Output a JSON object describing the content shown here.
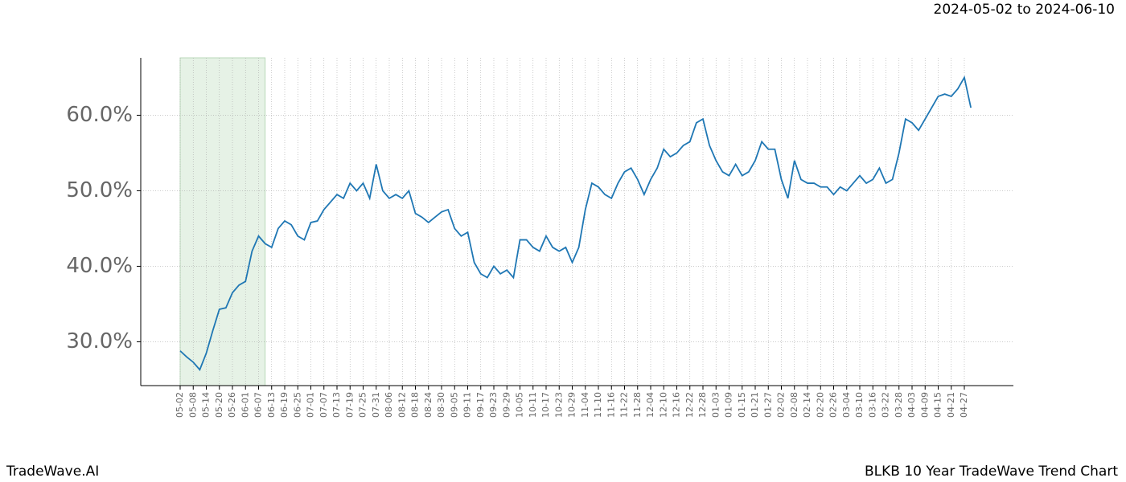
{
  "header": "2024-05-02 to 2024-06-10",
  "footer_left": "TradeWave.AI",
  "footer_right": "BLKB 10 Year TradeWave Trend Chart",
  "chart_data": {
    "type": "line",
    "categories": [
      "05-02",
      null,
      "05-08",
      null,
      "05-14",
      null,
      "05-20",
      null,
      "05-26",
      null,
      "06-01",
      null,
      "06-07",
      null,
      "06-13",
      null,
      "06-19",
      null,
      "06-25",
      null,
      "07-01",
      null,
      "07-07",
      null,
      "07-13",
      null,
      "07-19",
      null,
      "07-25",
      null,
      "07-31",
      null,
      "08-06",
      null,
      "08-12",
      null,
      "08-18",
      null,
      "08-24",
      null,
      "08-30",
      null,
      "09-05",
      null,
      "09-11",
      null,
      "09-17",
      null,
      "09-23",
      null,
      "09-29",
      null,
      "10-05",
      null,
      "10-11",
      null,
      "10-17",
      null,
      "10-23",
      null,
      "10-29",
      null,
      "11-04",
      null,
      "11-10",
      null,
      "11-16",
      null,
      "11-22",
      null,
      "11-28",
      null,
      "12-04",
      null,
      "12-10",
      null,
      "12-16",
      null,
      "12-22",
      null,
      "12-28",
      null,
      "01-03",
      null,
      "01-09",
      null,
      "01-15",
      null,
      "01-21",
      null,
      "01-27",
      null,
      "02-02",
      null,
      "02-08",
      null,
      "02-14",
      null,
      "02-20",
      null,
      "02-26",
      null,
      "03-04",
      null,
      "03-10",
      null,
      "03-16",
      null,
      "03-22",
      null,
      "03-28",
      null,
      "04-03",
      null,
      "04-09",
      null,
      "04-15",
      null,
      "04-21",
      null,
      "04-27",
      null
    ],
    "series": [
      {
        "color": "#1f77b4",
        "values": [
          28.8,
          28.0,
          27.3,
          26.3,
          28.5,
          31.5,
          34.3,
          34.5,
          36.5,
          37.5,
          38.0,
          42.0,
          44.0,
          43.0,
          42.5,
          45.0,
          46.0,
          45.5,
          44.0,
          43.5,
          45.8,
          46.0,
          47.5,
          48.5,
          49.5,
          49.0,
          51.0,
          50.0,
          51.0,
          49.0,
          53.5,
          50.0,
          49.0,
          49.5,
          49.0,
          50.0,
          47.0,
          46.5,
          45.8,
          46.5,
          47.2,
          47.5,
          45.0,
          44.0,
          44.5,
          40.5,
          39.0,
          38.5,
          40.0,
          39.0,
          39.5,
          38.5,
          43.5,
          43.5,
          42.5,
          42.0,
          44.0,
          42.5,
          42.0,
          42.5,
          40.5,
          42.5,
          47.5,
          51.0,
          50.5,
          49.5,
          49.0,
          51.0,
          52.5,
          53.0,
          51.5,
          49.5,
          51.5,
          53.0,
          55.5,
          54.5,
          55.0,
          56.0,
          56.5,
          59.0,
          59.5,
          56.0,
          54.0,
          52.5,
          52.0,
          53.5,
          52.0,
          52.5,
          54.0,
          56.5,
          55.5,
          55.5,
          51.5,
          49.0,
          54.0,
          51.5,
          51.0,
          51.0,
          50.5,
          50.5,
          49.5,
          50.5,
          50.0,
          51.0,
          52.0,
          51.0,
          51.5,
          53.0,
          51.0,
          51.5,
          55.0,
          59.5,
          59.0,
          58.0,
          59.5,
          61.0,
          62.5,
          62.8,
          62.5,
          63.5,
          65.0,
          61.0
        ]
      }
    ],
    "ylim": [
      24.2,
      67.6
    ],
    "yticks": [
      {
        "value": 30,
        "label": "30.0%"
      },
      {
        "value": 40,
        "label": "40.0%"
      },
      {
        "value": 50,
        "label": "50.0%"
      },
      {
        "value": 60,
        "label": "60.0%"
      }
    ],
    "grid": true
  }
}
